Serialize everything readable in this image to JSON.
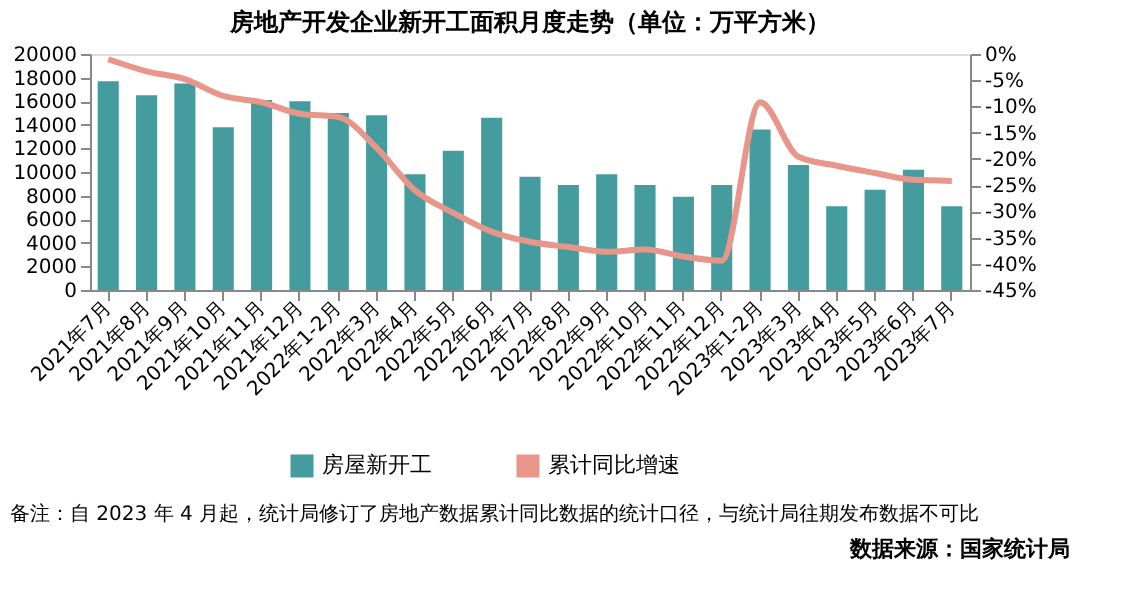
{
  "chart_data": {
    "type": "bar",
    "title": "房地产开发企业新开工面积月度走势（单位：万平方米）",
    "categories": [
      "2021年7月",
      "2021年8月",
      "2021年9月",
      "2021年10月",
      "2021年11月",
      "2021年12月",
      "2022年1-2月",
      "2022年3月",
      "2022年4月",
      "2022年5月",
      "2022年6月",
      "2022年7月",
      "2022年8月",
      "2022年9月",
      "2022年10月",
      "2022年11月",
      "2022年12月",
      "2023年1-2月",
      "2023年3月",
      "2023年4月",
      "2023年5月",
      "2023年6月",
      "2023年7月"
    ],
    "series": [
      {
        "name": "房屋新开工",
        "type": "bar",
        "color": "#459c9f",
        "values": [
          17700,
          16500,
          17500,
          13800,
          16100,
          16000,
          15000,
          14800,
          9800,
          11800,
          14600,
          9600,
          8900,
          9800,
          8900,
          7900,
          8900,
          13600,
          10600,
          7100,
          8500,
          10200,
          7100
        ]
      },
      {
        "name": "累计同比增速",
        "type": "line",
        "axis": "y2",
        "color": "#e8968a",
        "values": [
          -1.0,
          -3.3,
          -4.8,
          -8.0,
          -9.2,
          -11.4,
          -12.0,
          -17.9,
          -26.0,
          -30.3,
          -33.9,
          -35.8,
          -36.8,
          -37.7,
          -37.3,
          -38.6,
          -39.4,
          -9.2,
          -19.6,
          -21.3,
          -22.7,
          -24.0,
          -24.2
        ]
      }
    ],
    "ylim": [
      0,
      20000
    ],
    "yticks": [
      0,
      2000,
      4000,
      6000,
      8000,
      10000,
      12000,
      14000,
      16000,
      18000,
      20000
    ],
    "y2lim": [
      -45,
      0
    ],
    "y2ticks": [
      {
        "value": 0,
        "label": "0%"
      },
      {
        "value": -5,
        "label": "-5%"
      },
      {
        "value": -10,
        "label": "-10%"
      },
      {
        "value": -15,
        "label": "-15%"
      },
      {
        "value": -20,
        "label": "-20%"
      },
      {
        "value": -25,
        "label": "-25%"
      },
      {
        "value": -30,
        "label": "-30%"
      },
      {
        "value": -35,
        "label": "-35%"
      },
      {
        "value": -40,
        "label": "-40%"
      },
      {
        "value": -45,
        "label": "-45%"
      }
    ],
    "grid": false,
    "legend": "bottom",
    "marker": "none",
    "line_style": "solid",
    "annotations": [
      "备注：自 2023 年 4 月起，统计局修订了房地产数据累计同比数据的统计口径，与统计局往期发布数据不可比",
      "数据来源：国家统计局"
    ]
  }
}
